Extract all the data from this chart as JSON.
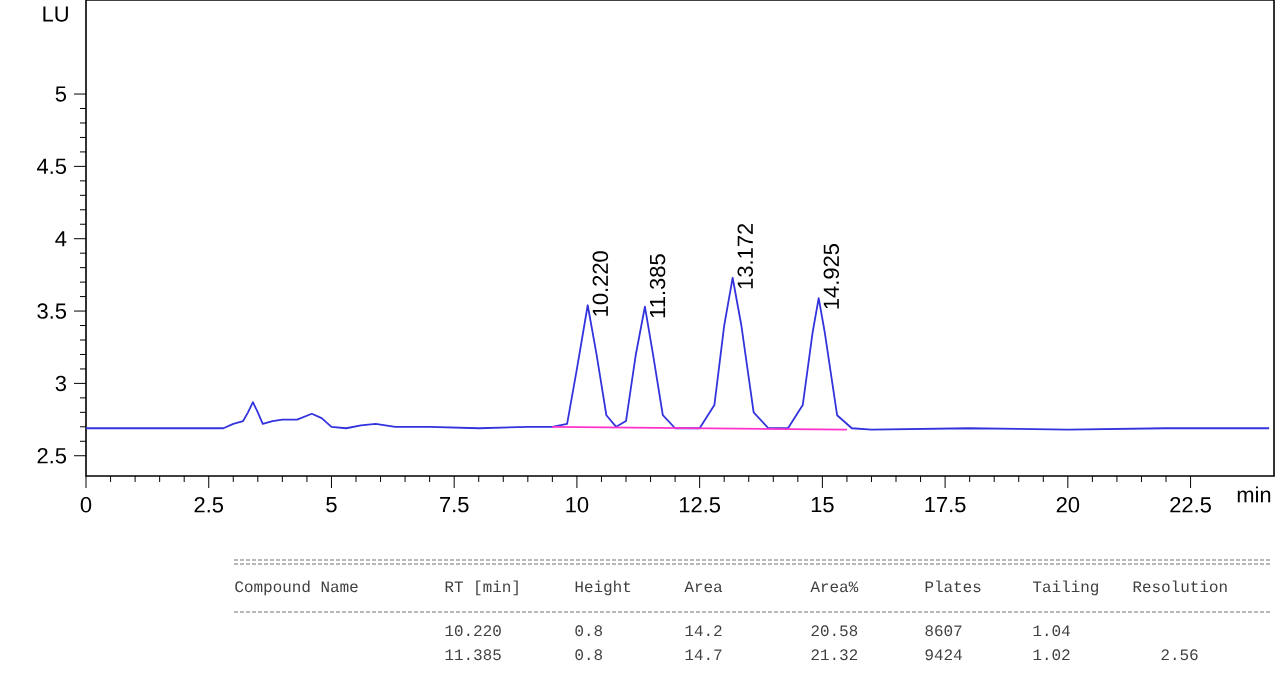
{
  "chart_data": {
    "type": "line",
    "xlabel": "min",
    "ylabel": "LU",
    "xlim": [
      0,
      24.2
    ],
    "ylim": [
      2.36,
      5.65
    ],
    "xticks": [
      0,
      2.5,
      5,
      7.5,
      10,
      12.5,
      15,
      17.5,
      20,
      22.5
    ],
    "yticks": [
      2.5,
      3,
      3.5,
      4,
      4.5,
      5
    ],
    "marker": "none",
    "line_style": "solid",
    "series": [
      {
        "color": "#3333dd",
        "x": [
          0,
          1,
          2,
          2.8,
          3.0,
          3.2,
          3.3,
          3.4,
          3.5,
          3.6,
          3.8,
          4.0,
          4.3,
          4.6,
          4.8,
          5.0,
          5.3,
          5.6,
          5.9,
          6.3,
          7,
          8,
          9,
          9.5,
          9.8,
          10.0,
          10.22,
          10.4,
          10.6,
          10.8,
          11.0,
          11.2,
          11.385,
          11.55,
          11.75,
          12.0,
          12.5,
          12.8,
          13.0,
          13.172,
          13.35,
          13.6,
          13.9,
          14.3,
          14.6,
          14.8,
          14.925,
          15.05,
          15.3,
          15.6,
          16,
          18,
          20,
          22,
          24.1
        ],
        "values": [
          2.69,
          2.69,
          2.69,
          2.69,
          2.72,
          2.74,
          2.8,
          2.87,
          2.8,
          2.72,
          2.74,
          2.75,
          2.75,
          2.79,
          2.76,
          2.7,
          2.69,
          2.71,
          2.72,
          2.7,
          2.7,
          2.69,
          2.7,
          2.7,
          2.72,
          3.1,
          3.54,
          3.2,
          2.78,
          2.7,
          2.74,
          3.2,
          3.53,
          3.2,
          2.78,
          2.69,
          2.69,
          2.85,
          3.4,
          3.73,
          3.4,
          2.8,
          2.69,
          2.69,
          2.85,
          3.35,
          3.59,
          3.35,
          2.78,
          2.69,
          2.68,
          2.69,
          2.68,
          2.69,
          2.69
        ]
      },
      {
        "color": "#ff33cc",
        "x": [
          9.5,
          15.5
        ],
        "values": [
          2.7,
          2.68
        ]
      }
    ],
    "annotations": [
      {
        "text": "10.220",
        "x": 10.22,
        "y": 3.54
      },
      {
        "text": "11.385",
        "x": 11.385,
        "y": 3.53
      },
      {
        "text": "13.172",
        "x": 13.172,
        "y": 3.73
      },
      {
        "text": "14.925",
        "x": 14.925,
        "y": 3.59
      },
      "Compound Name",
      "RT [min]",
      "Height",
      "Area",
      "Area%",
      "Plates",
      "Tailing",
      "Resolution",
      "10.220",
      "0.8",
      "14.2",
      "20.58",
      "8607",
      "1.04",
      "11.385",
      "0.8",
      "14.7",
      "21.32",
      "9424",
      "1.02",
      "2.56"
    ]
  }
}
